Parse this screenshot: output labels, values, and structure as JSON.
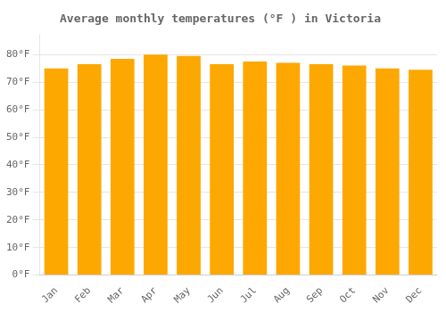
{
  "chart_data": {
    "type": "bar",
    "title": "Average monthly temperatures (°F ) in Victoria",
    "categories": [
      "Jan",
      "Feb",
      "Mar",
      "Apr",
      "May",
      "Jun",
      "Jul",
      "Aug",
      "Sep",
      "Oct",
      "Nov",
      "Dec"
    ],
    "values": [
      75,
      76.5,
      78.5,
      80,
      79.5,
      76.5,
      77.5,
      77,
      76.5,
      76,
      75,
      74.5
    ],
    "color": "#FCA800",
    "ylim": [
      0,
      87
    ],
    "yticks": [
      {
        "value": 0,
        "label": "0°F"
      },
      {
        "value": 10,
        "label": "10°F"
      },
      {
        "value": 20,
        "label": "20°F"
      },
      {
        "value": 30,
        "label": "30°F"
      },
      {
        "value": 40,
        "label": "40°F"
      },
      {
        "value": 50,
        "label": "50°F"
      },
      {
        "value": 60,
        "label": "60°F"
      },
      {
        "value": 70,
        "label": "70°F"
      },
      {
        "value": 80,
        "label": "80°F"
      }
    ],
    "grid": true
  }
}
